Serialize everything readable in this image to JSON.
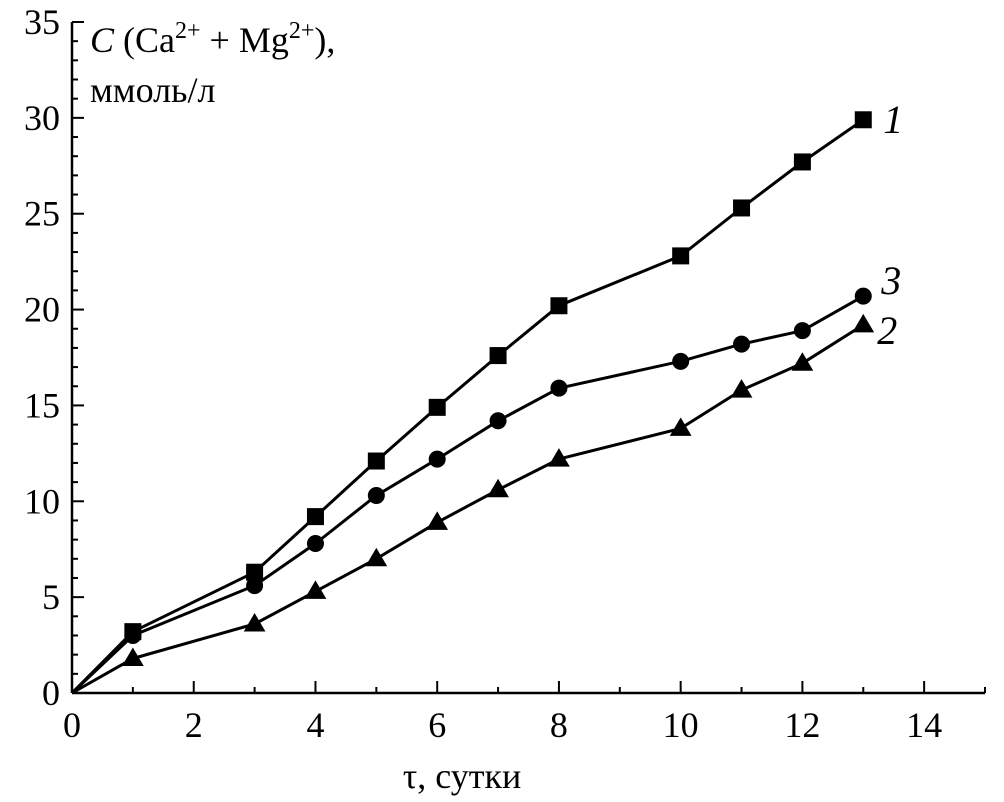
{
  "chart_data": {
    "type": "line",
    "ylabel": {
      "symbol": "C",
      "open": " (Ca",
      "sup1": "2+",
      "mid": " + Mg",
      "sup2": "2+",
      "close": "),",
      "unit": "ммоль/л"
    },
    "xlabel": "τ, сутки",
    "xlim": [
      0,
      15
    ],
    "ylim": [
      0,
      35
    ],
    "xticks": [
      0,
      2,
      4,
      6,
      8,
      10,
      12,
      14
    ],
    "yticks": [
      0,
      5,
      10,
      15,
      20,
      25,
      30,
      35
    ],
    "grid": false,
    "series": [
      {
        "name": "1",
        "marker": "square",
        "x": [
          0,
          1,
          3,
          4,
          5,
          6,
          7,
          8,
          10,
          11,
          12,
          13
        ],
        "y": [
          0,
          3.2,
          6.3,
          9.2,
          12.1,
          14.9,
          17.6,
          20.2,
          22.8,
          25.3,
          27.7,
          29.9
        ]
      },
      {
        "name": "3",
        "marker": "circle",
        "x": [
          0,
          1,
          3,
          4,
          5,
          6,
          7,
          8,
          10,
          11,
          12,
          13
        ],
        "y": [
          0,
          3.0,
          5.6,
          7.8,
          10.3,
          12.2,
          14.2,
          15.9,
          17.3,
          18.2,
          18.9,
          20.7
        ]
      },
      {
        "name": "2",
        "marker": "triangle",
        "x": [
          0,
          1,
          3,
          4,
          5,
          6,
          7,
          8,
          10,
          11,
          12,
          13
        ],
        "y": [
          0,
          1.8,
          3.6,
          5.3,
          7.0,
          8.9,
          10.6,
          12.2,
          13.8,
          15.8,
          17.2,
          19.2
        ]
      }
    ]
  }
}
